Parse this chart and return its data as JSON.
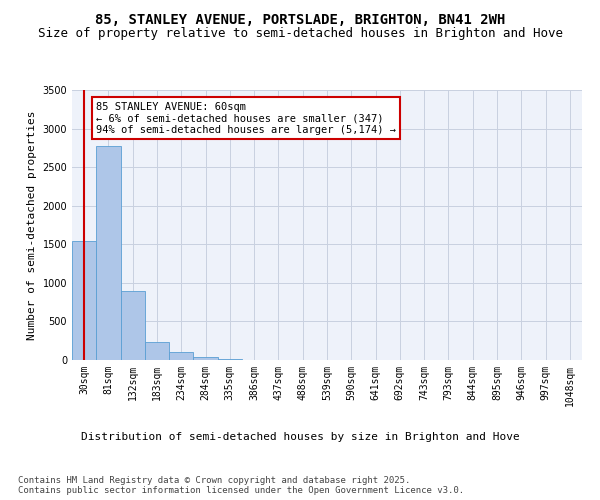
{
  "title": "85, STANLEY AVENUE, PORTSLADE, BRIGHTON, BN41 2WH",
  "subtitle": "Size of property relative to semi-detached houses in Brighton and Hove",
  "xlabel": "Distribution of semi-detached houses by size in Brighton and Hove",
  "ylabel": "Number of semi-detached properties",
  "categories": [
    "30sqm",
    "81sqm",
    "132sqm",
    "183sqm",
    "234sqm",
    "284sqm",
    "335sqm",
    "386sqm",
    "437sqm",
    "488sqm",
    "539sqm",
    "590sqm",
    "641sqm",
    "692sqm",
    "743sqm",
    "793sqm",
    "844sqm",
    "895sqm",
    "946sqm",
    "997sqm",
    "1048sqm"
  ],
  "values": [
    1540,
    2770,
    900,
    230,
    100,
    35,
    15,
    0,
    0,
    0,
    0,
    0,
    0,
    0,
    0,
    0,
    0,
    0,
    0,
    0,
    0
  ],
  "bar_color": "#aec6e8",
  "bar_edge_color": "#5a9fd4",
  "marker_line_color": "#cc0000",
  "annotation_text": "85 STANLEY AVENUE: 60sqm\n← 6% of semi-detached houses are smaller (347)\n94% of semi-detached houses are larger (5,174) →",
  "annotation_box_color": "#cc0000",
  "ylim": [
    0,
    3500
  ],
  "yticks": [
    0,
    500,
    1000,
    1500,
    2000,
    2500,
    3000,
    3500
  ],
  "background_color": "#eef2fa",
  "grid_color": "#c8d0e0",
  "footer": "Contains HM Land Registry data © Crown copyright and database right 2025.\nContains public sector information licensed under the Open Government Licence v3.0.",
  "title_fontsize": 10,
  "subtitle_fontsize": 9,
  "xlabel_fontsize": 8,
  "ylabel_fontsize": 8,
  "tick_fontsize": 7,
  "annotation_fontsize": 7.5,
  "footer_fontsize": 6.5
}
